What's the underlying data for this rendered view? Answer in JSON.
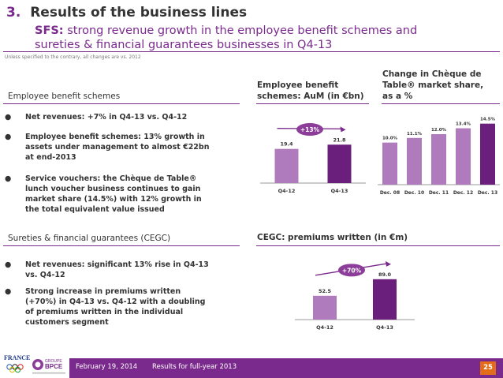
{
  "header": {
    "number": "3.",
    "title": "Results of the business lines",
    "subtitle_bold": "SFS:",
    "subtitle_line1": " strong revenue growth in the employee benefit schemes and",
    "subtitle_line2": "sureties & financial guarantees businesses in Q4-13",
    "note": "Unless specified to the contrary, all changes are vs. 2012"
  },
  "employee_section": {
    "title": "Employee benefit schemes",
    "bullets": [
      "Net revenues: +7% in Q4-13 vs. Q4-12",
      "Employee benefit schemes: 13% growth in\nassets under management to almost €22bn\nat end-2013",
      "Service vouchers: the Chèque de Table®\nlunch voucher business continues to gain\nmarket share (14.5%) with 12% growth in\nthe total equivalent value issued"
    ]
  },
  "cegc_section": {
    "title": "Sureties & financial guarantees (CEGC)",
    "bullets": [
      "Net revenues: significant 13% rise in Q4-13\nvs. Q4-12",
      "Strong increase in premiums written\n(+70%) in Q4-13 vs. Q4-12 with a doubling\nof premiums written in the individual\ncustomers segment"
    ]
  },
  "bullet_symbol": "●",
  "chart_data": [
    {
      "type": "bar",
      "title": "Employee benefit schemes: AuM (in €bn)",
      "title_line1": "Employee benefit",
      "title_line2": "schemes: AuM (in €bn)",
      "categories": [
        "Q4-12",
        "Q4-13"
      ],
      "values": [
        19.4,
        21.8
      ],
      "value_labels": [
        "19.4",
        "21.8"
      ],
      "colors": [
        "#b07bbd",
        "#6a1f7d"
      ],
      "annotation": "+13%",
      "ylim": [
        0,
        30
      ]
    },
    {
      "type": "bar",
      "title": "Change in Chèque de Table® market share, as a %",
      "title_line1": "Change in Chèque de",
      "title_line2": "Table® market share,",
      "title_line3": "as a %",
      "categories": [
        "Dec. 08",
        "Dec. 10",
        "Dec. 11",
        "Dec. 12",
        "Dec. 13"
      ],
      "values": [
        10.0,
        11.1,
        12.0,
        13.4,
        14.5
      ],
      "value_labels": [
        "10.0%",
        "11.1%",
        "12.0%",
        "13.4%",
        "14.5%"
      ],
      "colors": [
        "#b07bbd",
        "#b07bbd",
        "#b07bbd",
        "#b07bbd",
        "#6a1f7d"
      ],
      "ylim": [
        0,
        15
      ]
    },
    {
      "type": "bar",
      "title": "CEGC: premiums written (in €m)",
      "categories": [
        "Q4-12",
        "Q4-13"
      ],
      "values": [
        52.5,
        89.0
      ],
      "value_labels": [
        "52.5",
        "89.0"
      ],
      "colors": [
        "#b07bbd",
        "#6a1f7d"
      ],
      "annotation": "+70%",
      "ylim": [
        0,
        120
      ]
    }
  ],
  "footer": {
    "date": "February 19, 2014",
    "subtitle": "Results for full-year 2013",
    "page": "25",
    "logo_france": "FRANCE",
    "logo_groupe": "GROUPE",
    "logo_bpce": "BPCE",
    "colors": {
      "bar": "#7a2a8c",
      "page_badge": "#e36c1b"
    }
  }
}
